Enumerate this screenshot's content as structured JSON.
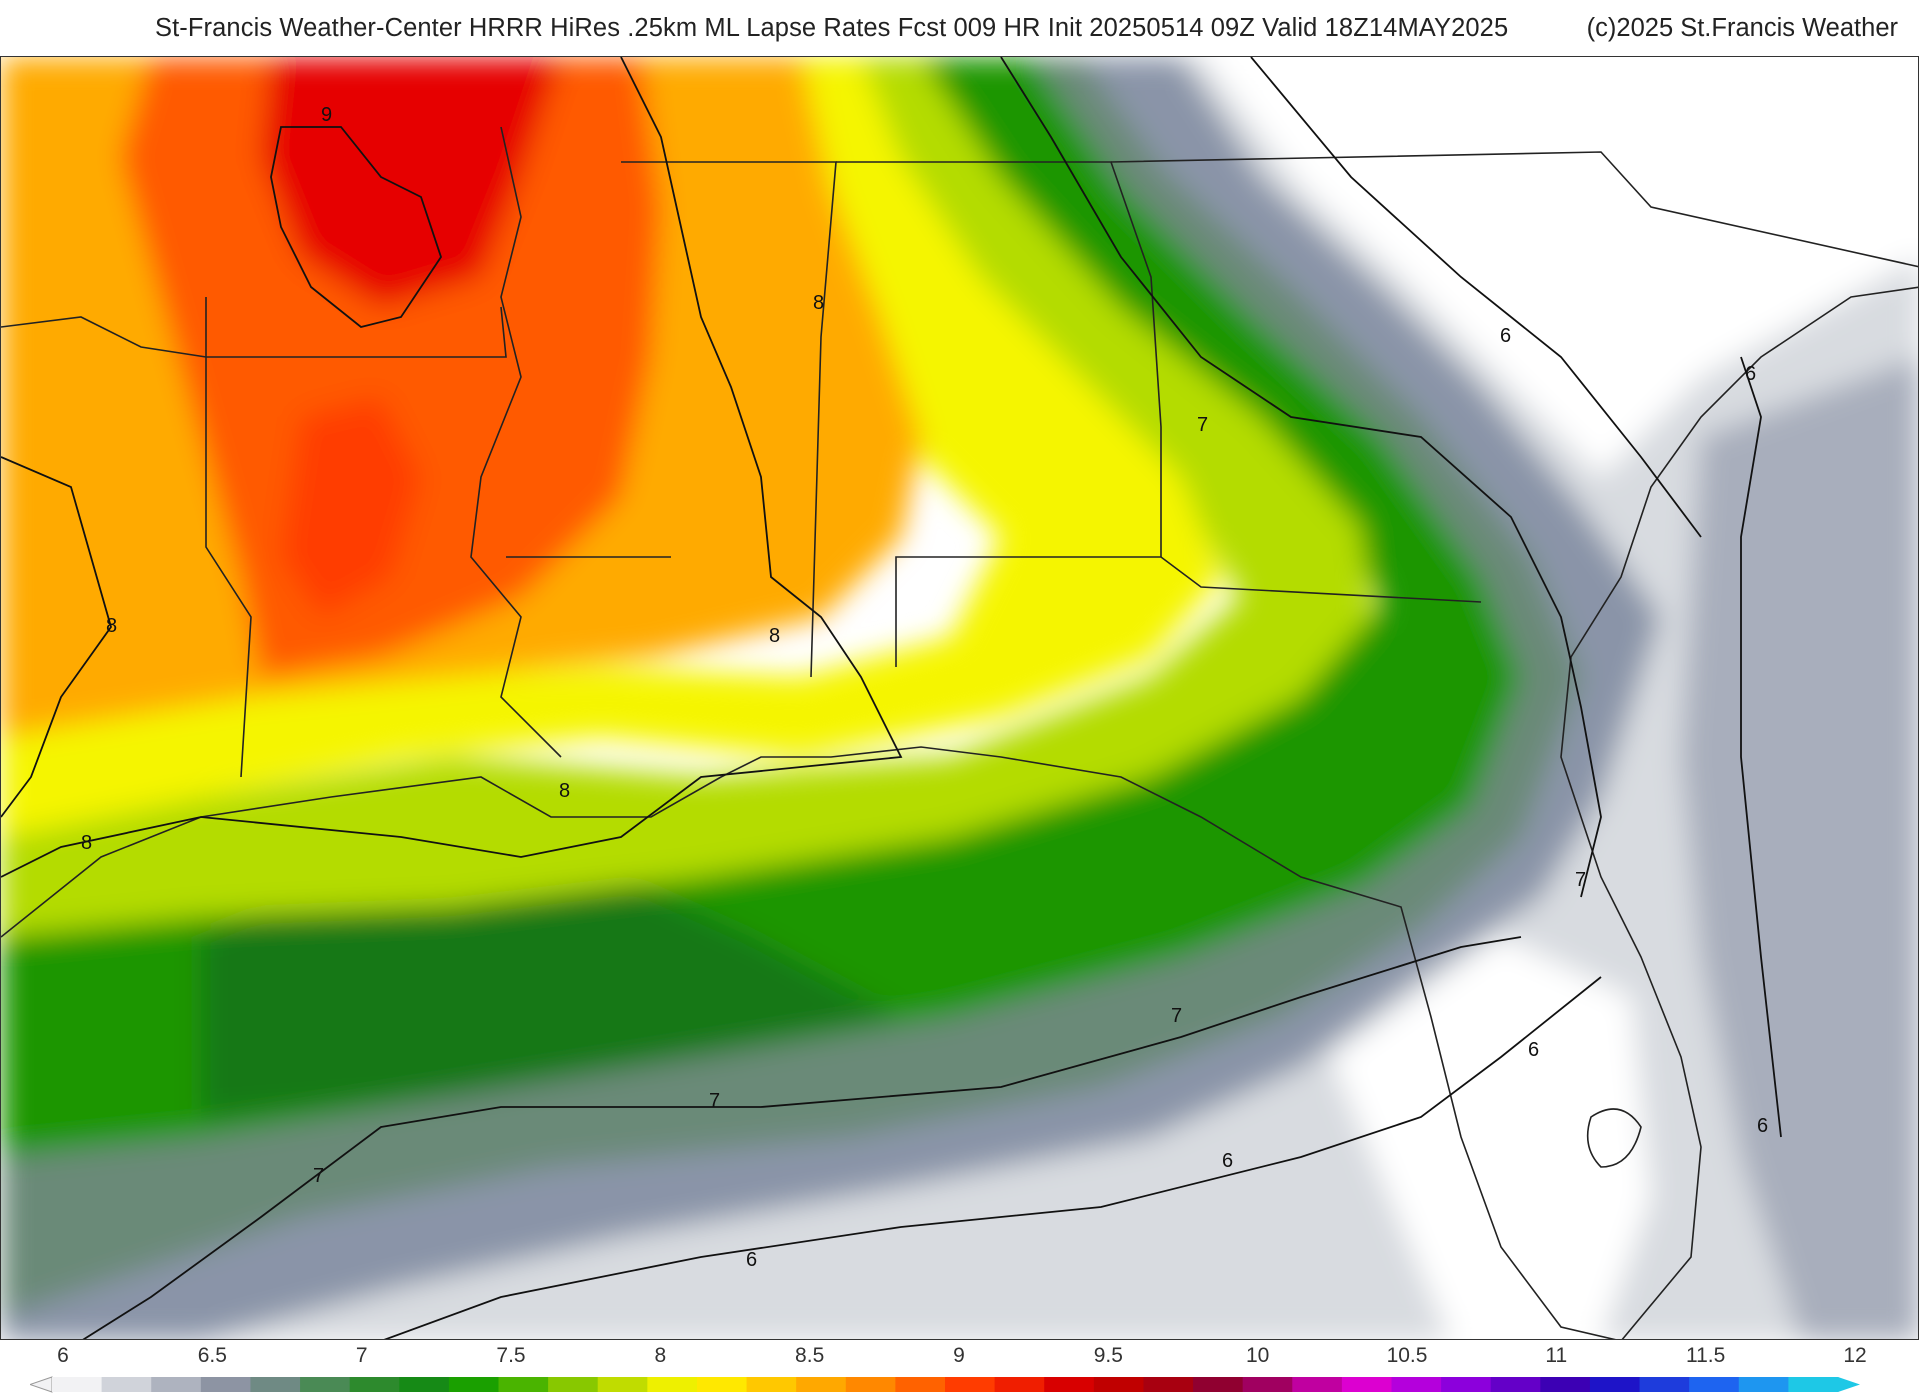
{
  "header": {
    "title": "St-Francis Weather-Center HRRR HiRes .25km ML Lapse Rates  Fcst 009 HR Init 20250514 09Z  Valid 18Z14MAY2025",
    "copyright": "(c)2025 St.Francis Weather"
  },
  "map": {
    "contour_labels": [
      "9",
      "8",
      "8",
      "8",
      "8",
      "8",
      "7",
      "7",
      "7",
      "7",
      "7",
      "6",
      "6",
      "6",
      "6",
      "6",
      "6"
    ],
    "colors": {
      "very_high": "#e60000",
      "high": "#ff5a00",
      "orange": "#ffaa00",
      "yellow": "#f5f500",
      "yellow_green": "#b4dc00",
      "green": "#1e9600",
      "dark_green": "#147814",
      "gray_green": "#6a8a78",
      "blue_gray": "#8a94a8",
      "light_gray": "#d8dbe0",
      "background": "#ffffff",
      "boundary_line": "#222222"
    }
  },
  "colorbar": {
    "tick_labels": [
      "6",
      "6.5",
      "7",
      "7.5",
      "8",
      "8.5",
      "9",
      "9.5",
      "10",
      "10.5",
      "11",
      "11.5",
      "12"
    ],
    "colors": [
      "#f2f2f4",
      "#d0d3da",
      "#aeb3bf",
      "#8d94a3",
      "#6f8a84",
      "#4a8a55",
      "#2d8a2d",
      "#168a16",
      "#1aa000",
      "#4ab400",
      "#88c800",
      "#c0dc00",
      "#eef000",
      "#ffe800",
      "#ffc800",
      "#ffa800",
      "#ff8800",
      "#ff6200",
      "#ff3c00",
      "#f01e00",
      "#d80000",
      "#c00000",
      "#a80010",
      "#900030",
      "#a00060",
      "#c000a0",
      "#dc00d0",
      "#b400dc",
      "#8c00dc",
      "#6400c8",
      "#3c00b4",
      "#1e14c8",
      "#1e3cdc",
      "#1e64f0",
      "#1e96f0",
      "#1ec8e6"
    ]
  }
}
